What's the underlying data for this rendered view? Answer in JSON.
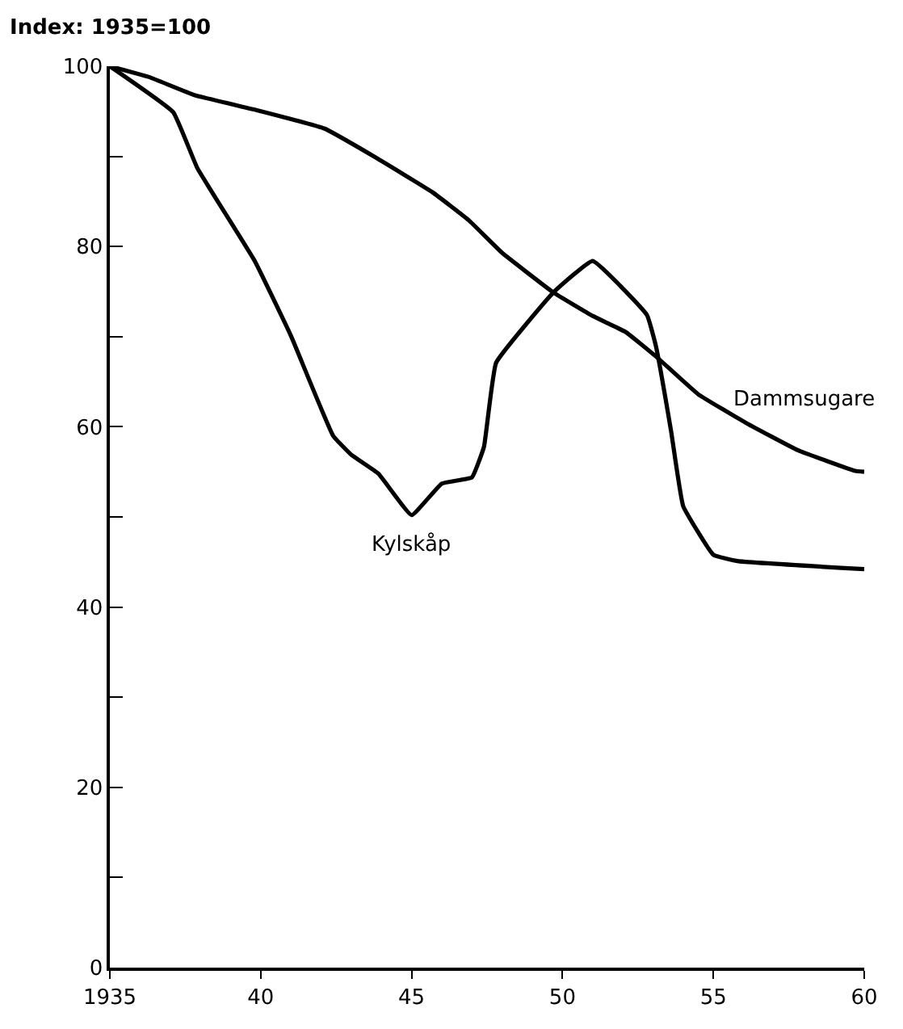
{
  "chart_data": {
    "type": "line",
    "ylabel": "Index: 1935=100",
    "series": [
      {
        "color": "#000000",
        "x": [
          1935,
          1936.3,
          1937.8,
          1939.9,
          1942.1,
          1943.8,
          1945.7,
          1946.9,
          1948.0,
          1949.7,
          1951.0,
          1952.1,
          1953.1,
          1954.5,
          1956.1,
          1957.8,
          1959.7,
          1960
        ],
        "values": [
          100,
          98.8,
          96.8,
          95.1,
          93.1,
          89.9,
          86.0,
          82.9,
          79.3,
          74.9,
          72.3,
          70.5,
          67.8,
          63.6,
          60.4,
          57.4,
          55.1,
          55
        ]
      },
      {
        "color": "#000000",
        "x": [
          1935,
          1937.1,
          1937.9,
          1939.8,
          1941.0,
          1942.4,
          1943.0,
          1943.9,
          1945.0,
          1946.0,
          1947.0,
          1947.4,
          1947.8,
          1949.7,
          1951.0,
          1952.8,
          1953.1,
          1953.6,
          1954.0,
          1955.0,
          1955.8,
          1960
        ],
        "values": [
          100,
          94.9,
          88.7,
          78.4,
          70.1,
          59.0,
          56.9,
          54.8,
          50.2,
          53.7,
          54.4,
          57.8,
          67.1,
          74.9,
          78.4,
          72.4,
          68.9,
          59.5,
          51.2,
          45.8,
          45.1,
          44.2
        ]
      }
    ],
    "annotations": [
      {
        "text": "Kylskåp",
        "x": 1945,
        "y": 50.2
      },
      {
        "text": "Dammsugare",
        "x": 1958,
        "y": 57.4
      }
    ],
    "xlim": [
      1935,
      1960
    ],
    "ylim": [
      0,
      100
    ],
    "xticks": [
      1935,
      {
        "value": 1940,
        "label": "40"
      },
      {
        "value": 1945,
        "label": "45"
      },
      {
        "value": 1950,
        "label": "50"
      },
      {
        "value": 1955,
        "label": "55"
      },
      {
        "value": 1960,
        "label": "60"
      }
    ],
    "yticks": [
      0,
      {
        "value": 10,
        "label": null
      },
      20,
      {
        "value": 30,
        "label": null
      },
      40,
      {
        "value": 50,
        "label": null
      },
      60,
      {
        "value": 70,
        "label": null
      },
      80,
      {
        "value": 90,
        "label": null
      },
      100
    ],
    "legend": false,
    "marker": "none",
    "line_style": "solid"
  }
}
